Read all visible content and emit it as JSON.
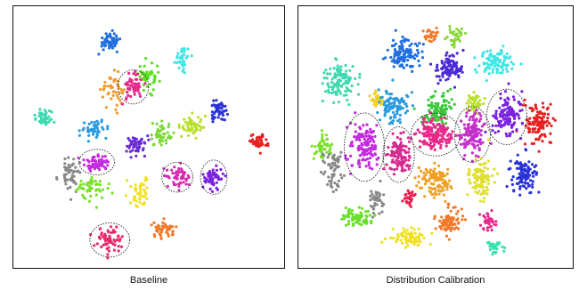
{
  "chart_data": [
    {
      "type": "scatter",
      "title": "Baseline",
      "xlim": [
        0,
        100
      ],
      "ylim": [
        0,
        100
      ],
      "grid": false,
      "axes_visible": false,
      "clusters": [
        {
          "color": "#1f6fe0",
          "x": 35,
          "y": 88,
          "spread": [
            3.5,
            3.0
          ],
          "n": 55
        },
        {
          "color": "#3fe6e6",
          "x": 63,
          "y": 82,
          "spread": [
            2.5,
            4.0
          ],
          "n": 40
        },
        {
          "color": "#58e01f",
          "x": 50,
          "y": 74,
          "spread": [
            3.5,
            4.5
          ],
          "n": 50
        },
        {
          "color": "#f09a2a",
          "x": 36,
          "y": 69,
          "spread": [
            3.5,
            5.0
          ],
          "n": 45
        },
        {
          "color": "#e8288a",
          "x": 44,
          "y": 70,
          "spread": [
            3.5,
            4.0
          ],
          "n": 60,
          "circled": true
        },
        {
          "color": "#2a33d6",
          "x": 77,
          "y": 60,
          "spread": [
            2.5,
            3.5
          ],
          "n": 45
        },
        {
          "color": "#3fd9b0",
          "x": 10,
          "y": 58,
          "spread": [
            4.0,
            2.5
          ],
          "n": 45
        },
        {
          "color": "#2a9be0",
          "x": 29,
          "y": 53,
          "spread": [
            4.0,
            3.0
          ],
          "n": 45
        },
        {
          "color": "#b8e02a",
          "x": 67,
          "y": 55,
          "spread": [
            4.0,
            3.5
          ],
          "n": 50
        },
        {
          "color": "#7ed63a",
          "x": 55,
          "y": 51,
          "spread": [
            3.0,
            4.0
          ],
          "n": 45
        },
        {
          "color": "#6a2ad6",
          "x": 45,
          "y": 47,
          "spread": [
            3.5,
            3.5
          ],
          "n": 50
        },
        {
          "color": "#e82020",
          "x": 92,
          "y": 48,
          "spread": [
            3.0,
            2.5
          ],
          "n": 50
        },
        {
          "color": "#888888",
          "x": 20,
          "y": 35,
          "spread": [
            3.5,
            5.5
          ],
          "n": 55
        },
        {
          "color": "#c32ae0",
          "x": 30,
          "y": 40,
          "spread": [
            4.0,
            3.0
          ],
          "n": 60,
          "circled": true
        },
        {
          "color": "#7ae02a",
          "x": 29,
          "y": 30,
          "spread": [
            6.0,
            4.0
          ],
          "n": 50
        },
        {
          "color": "#f0e020",
          "x": 47,
          "y": 28,
          "spread": [
            3.0,
            5.0
          ],
          "n": 45
        },
        {
          "color": "#d62ab0",
          "x": 61,
          "y": 34,
          "spread": [
            3.5,
            3.5
          ],
          "n": 55,
          "circled": true
        },
        {
          "color": "#7b22e0",
          "x": 75,
          "y": 34,
          "spread": [
            3.0,
            4.0
          ],
          "n": 55,
          "circled": true
        },
        {
          "color": "#f07a2a",
          "x": 56,
          "y": 13,
          "spread": [
            4.0,
            3.0
          ],
          "n": 45
        },
        {
          "color": "#e8286a",
          "x": 35,
          "y": 9,
          "spread": [
            4.5,
            4.0
          ],
          "n": 60,
          "circled": true
        }
      ]
    },
    {
      "type": "scatter",
      "title": "Distribution Calibration",
      "xlim": [
        0,
        100
      ],
      "ylim": [
        0,
        100
      ],
      "grid": false,
      "axes_visible": false,
      "clusters": [
        {
          "color": "#f07a2a",
          "x": 48,
          "y": 91,
          "spread": [
            2.0,
            2.5
          ],
          "n": 30
        },
        {
          "color": "#8ad63a",
          "x": 58,
          "y": 90,
          "spread": [
            2.5,
            3.0
          ],
          "n": 35
        },
        {
          "color": "#1f6fe0",
          "x": 38,
          "y": 83,
          "spread": [
            5.0,
            5.0
          ],
          "n": 110
        },
        {
          "color": "#4a2ad6",
          "x": 55,
          "y": 78,
          "spread": [
            4.5,
            4.5
          ],
          "n": 100
        },
        {
          "color": "#3fe6e6",
          "x": 73,
          "y": 80,
          "spread": [
            5.0,
            4.5
          ],
          "n": 100
        },
        {
          "color": "#3fd9b0",
          "x": 14,
          "y": 72,
          "spread": [
            5.5,
            6.0
          ],
          "n": 110
        },
        {
          "color": "#f0d020",
          "x": 28,
          "y": 65,
          "spread": [
            2.0,
            3.5
          ],
          "n": 30
        },
        {
          "color": "#2a9be0",
          "x": 34,
          "y": 62,
          "spread": [
            4.5,
            5.5
          ],
          "n": 100
        },
        {
          "color": "#3ac93a",
          "x": 51,
          "y": 61,
          "spread": [
            4.5,
            5.5
          ],
          "n": 110
        },
        {
          "color": "#b8e02a",
          "x": 65,
          "y": 63,
          "spread": [
            3.0,
            3.5
          ],
          "n": 45
        },
        {
          "color": "#e82020",
          "x": 89,
          "y": 55,
          "spread": [
            4.0,
            7.0
          ],
          "n": 110
        },
        {
          "color": "#7ae02a",
          "x": 7,
          "y": 46,
          "spread": [
            3.0,
            4.5
          ],
          "n": 50
        },
        {
          "color": "#c32ae0",
          "x": 23,
          "y": 46,
          "spread": [
            4.5,
            8.0
          ],
          "n": 130,
          "circled": true
        },
        {
          "color": "#d62a90",
          "x": 36,
          "y": 43,
          "spread": [
            3.5,
            6.5
          ],
          "n": 110,
          "circled": true
        },
        {
          "color": "#e8288a",
          "x": 50,
          "y": 51,
          "spread": [
            5.5,
            5.0
          ],
          "n": 150,
          "circled": true
        },
        {
          "color": "#c330c8",
          "x": 64,
          "y": 51,
          "spread": [
            4.0,
            6.5
          ],
          "n": 130,
          "circled": true
        },
        {
          "color": "#7b22e0",
          "x": 77,
          "y": 58,
          "spread": [
            4.5,
            6.5
          ],
          "n": 130,
          "circled": true
        },
        {
          "color": "#888888",
          "x": 11,
          "y": 37,
          "spread": [
            3.5,
            6.0
          ],
          "n": 60
        },
        {
          "color": "#f0a020",
          "x": 50,
          "y": 33,
          "spread": [
            5.0,
            5.0
          ],
          "n": 110
        },
        {
          "color": "#2a33d6",
          "x": 83,
          "y": 35,
          "spread": [
            4.0,
            6.0
          ],
          "n": 100
        },
        {
          "color": "#dfe030",
          "x": 67,
          "y": 34,
          "spread": [
            4.0,
            6.0
          ],
          "n": 100
        },
        {
          "color": "#e82050",
          "x": 40,
          "y": 26,
          "spread": [
            2.0,
            3.0
          ],
          "n": 30
        },
        {
          "color": "#6ae02a",
          "x": 20,
          "y": 18,
          "spread": [
            4.5,
            3.5
          ],
          "n": 70
        },
        {
          "color": "#888888",
          "x": 27,
          "y": 25,
          "spread": [
            2.5,
            4.0
          ],
          "n": 40
        },
        {
          "color": "#f07a2a",
          "x": 55,
          "y": 17,
          "spread": [
            4.0,
            4.5
          ],
          "n": 80
        },
        {
          "color": "#f0e020",
          "x": 40,
          "y": 10,
          "spread": [
            5.5,
            3.0
          ],
          "n": 80
        },
        {
          "color": "#e8288a",
          "x": 70,
          "y": 16,
          "spread": [
            2.5,
            3.0
          ],
          "n": 35
        },
        {
          "color": "#3ae0b0",
          "x": 72,
          "y": 6,
          "spread": [
            2.5,
            2.0
          ],
          "n": 30
        }
      ]
    }
  ]
}
